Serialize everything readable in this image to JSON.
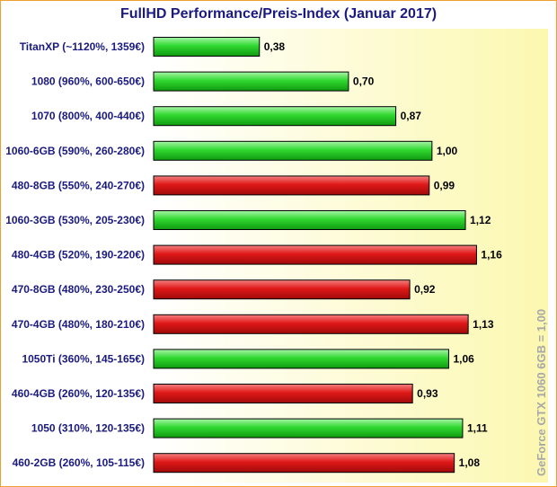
{
  "chart_data": {
    "type": "bar",
    "orientation": "horizontal",
    "title": "FullHD Performance/Preis-Index (Januar 2017)",
    "note": "GeForce GTX 1060 6GB = 1,00",
    "xlim": [
      0,
      1.42
    ],
    "grid": false,
    "categories": [
      "TitanXP (~1120%, 1359€)",
      "1080 (960%, 600-650€)",
      "1070 (800%, 400-440€)",
      "1060-6GB (590%, 260-280€)",
      "480-8GB (550%, 240-270€)",
      "1060-3GB (530%, 205-230€)",
      "480-4GB (520%, 190-220€)",
      "470-8GB (480%, 230-250€)",
      "470-4GB (480%, 180-210€)",
      "1050Ti (360%, 145-165€)",
      "460-4GB (260%, 120-135€)",
      "1050 (310%, 120-135€)",
      "460-2GB (260%, 105-115€)"
    ],
    "values": [
      0.38,
      0.7,
      0.87,
      1.0,
      0.99,
      1.12,
      1.16,
      0.92,
      1.13,
      1.06,
      0.93,
      1.11,
      1.08
    ],
    "value_labels": [
      "0,38",
      "0,70",
      "0,87",
      "1,00",
      "0,99",
      "1,12",
      "1,16",
      "0,92",
      "1,13",
      "1,06",
      "0,93",
      "1,11",
      "1,08"
    ],
    "bar_colors": [
      "green",
      "green",
      "green",
      "green",
      "red",
      "green",
      "red",
      "red",
      "red",
      "green",
      "red",
      "green",
      "red"
    ],
    "colors": {
      "green": "#22cc22",
      "red": "#dd1111",
      "title": "#1a1a80",
      "labels": "#1a1a80",
      "note": "#a8a8a8",
      "plot_bg_left": "#ffffff",
      "plot_bg_right": "#fcf8b0",
      "border": "#f0a030"
    }
  }
}
